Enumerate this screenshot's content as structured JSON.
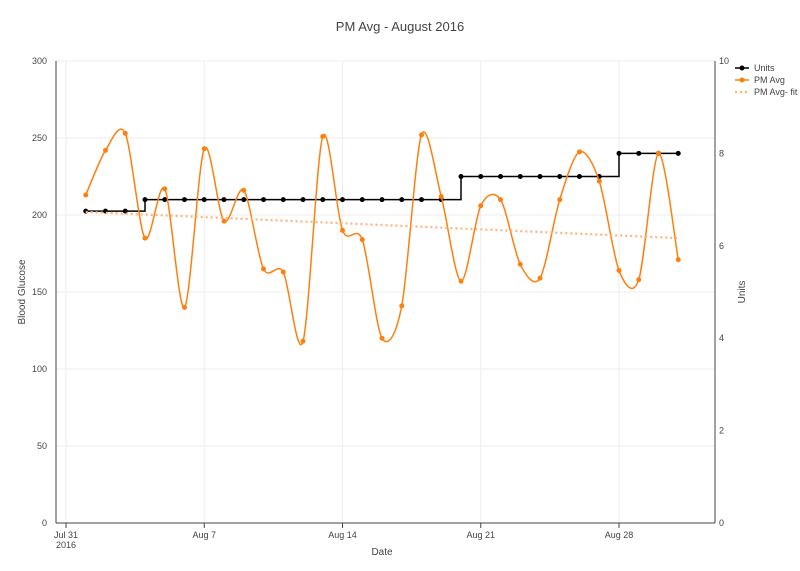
{
  "chart_data": {
    "type": "line",
    "title": "PM Avg - August 2016",
    "xlabel": "Date",
    "ylabel": "Blood Glucose",
    "y2label": "Units",
    "x_ticks": [
      {
        "day": 0,
        "label": "Jul 31",
        "sublabel": "2016"
      },
      {
        "day": 7,
        "label": "Aug 7",
        "sublabel": ""
      },
      {
        "day": 14,
        "label": "Aug 14",
        "sublabel": ""
      },
      {
        "day": 21,
        "label": "Aug 21",
        "sublabel": ""
      },
      {
        "day": 28,
        "label": "Aug 28",
        "sublabel": ""
      }
    ],
    "xlim": [
      "2016-07-31",
      "2016-09-03"
    ],
    "ylim": [
      0,
      300
    ],
    "y_ticks": [
      0,
      50,
      100,
      150,
      200,
      250,
      300
    ],
    "y2lim": [
      0,
      10
    ],
    "y2_ticks": [
      0,
      2,
      4,
      6,
      8,
      10
    ],
    "grid": true,
    "legend_position": "top-right",
    "colors": {
      "units": "#000000",
      "pm_avg": "#ff7f0e",
      "fit": "#ffb27a",
      "grid": "#eeeeee",
      "axis": "#444444"
    },
    "series": [
      {
        "name": "Units",
        "axis": "y2",
        "shape": "hv",
        "x": [
          "2016-08-01",
          "2016-08-02",
          "2016-08-03",
          "2016-08-04",
          "2016-08-05",
          "2016-08-06",
          "2016-08-07",
          "2016-08-08",
          "2016-08-09",
          "2016-08-10",
          "2016-08-11",
          "2016-08-12",
          "2016-08-13",
          "2016-08-14",
          "2016-08-15",
          "2016-08-16",
          "2016-08-17",
          "2016-08-18",
          "2016-08-19",
          "2016-08-20",
          "2016-08-21",
          "2016-08-22",
          "2016-08-23",
          "2016-08-24",
          "2016-08-25",
          "2016-08-26",
          "2016-08-27",
          "2016-08-28",
          "2016-08-29",
          "2016-08-30",
          "2016-08-31"
        ],
        "values": [
          6.75,
          6.75,
          6.75,
          7,
          7,
          7,
          7,
          7,
          7,
          7,
          7,
          7,
          7,
          7,
          7,
          7,
          7,
          7,
          7,
          7.5,
          7.5,
          7.5,
          7.5,
          7.5,
          7.5,
          7.5,
          7.5,
          8,
          8,
          8,
          8
        ]
      },
      {
        "name": "PM Avg",
        "axis": "y",
        "shape": "spline",
        "x": [
          "2016-08-01",
          "2016-08-02",
          "2016-08-03",
          "2016-08-04",
          "2016-08-05",
          "2016-08-06",
          "2016-08-07",
          "2016-08-08",
          "2016-08-09",
          "2016-08-10",
          "2016-08-11",
          "2016-08-12",
          "2016-08-13",
          "2016-08-14",
          "2016-08-15",
          "2016-08-16",
          "2016-08-17",
          "2016-08-18",
          "2016-08-19",
          "2016-08-20",
          "2016-08-21",
          "2016-08-22",
          "2016-08-23",
          "2016-08-24",
          "2016-08-25",
          "2016-08-26",
          "2016-08-27",
          "2016-08-28",
          "2016-08-29",
          "2016-08-30",
          "2016-08-31"
        ],
        "values": [
          213,
          242,
          253,
          185,
          217,
          140,
          243,
          196,
          216,
          165,
          163,
          118,
          251,
          190,
          184,
          120,
          141,
          252,
          212,
          157,
          206,
          210,
          168,
          159,
          210,
          241,
          222,
          164,
          158,
          240,
          171
        ]
      },
      {
        "name": "PM Avg- fit",
        "axis": "y",
        "shape": "linear",
        "dash": "dot",
        "x": [
          "2016-08-01",
          "2016-08-31"
        ],
        "values": [
          202,
          185
        ]
      }
    ]
  }
}
